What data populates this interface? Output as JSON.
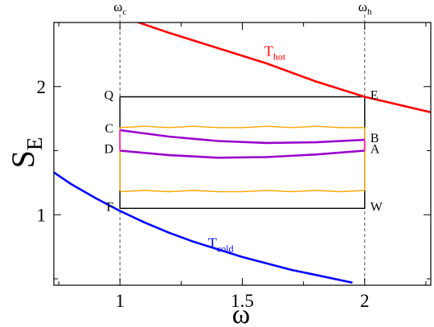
{
  "chart_data": {
    "type": "line",
    "xlabel": "ω",
    "ylabel": {
      "main": "S",
      "sub": "E"
    },
    "xlim": [
      0.73,
      2.27
    ],
    "ylim": [
      0.45,
      2.5
    ],
    "x_ticks": [
      {
        "value": 1,
        "label": "1"
      },
      {
        "value": 1.5,
        "label": "1.5"
      },
      {
        "value": 2,
        "label": "2"
      }
    ],
    "y_ticks": [
      {
        "value": 1,
        "label": "1"
      },
      {
        "value": 2,
        "label": "2"
      }
    ],
    "grid": false,
    "omega_markers": [
      {
        "x": 1,
        "main": "ω",
        "sub": "c"
      },
      {
        "x": 2,
        "main": "ω",
        "sub": "h"
      }
    ],
    "series": [
      {
        "name": "T_hot",
        "color": "#ff0000",
        "x": [
          1.0,
          1.2,
          1.4,
          1.6,
          1.8,
          2.0,
          2.27
        ],
        "y": [
          2.55,
          2.42,
          2.3,
          2.18,
          2.04,
          1.92,
          1.8
        ]
      },
      {
        "name": "T_cold",
        "color": "#0000ff",
        "x": [
          0.73,
          0.8,
          0.9,
          1.0,
          1.1,
          1.2,
          1.3,
          1.4,
          1.5,
          1.6,
          1.7,
          1.8,
          1.9,
          1.95
        ],
        "y": [
          1.33,
          1.24,
          1.13,
          1.03,
          0.94,
          0.86,
          0.79,
          0.73,
          0.67,
          0.62,
          0.57,
          0.53,
          0.49,
          0.47
        ]
      }
    ],
    "cycle_lines": [
      {
        "role": "outer-rectangle",
        "color": "#000000",
        "x": [
          1,
          2,
          2,
          1,
          1
        ],
        "y": [
          1.92,
          1.92,
          1.05,
          1.05,
          1.92
        ]
      },
      {
        "role": "orange-upper",
        "color": "#ffa500",
        "x": [
          1.0,
          1.1,
          1.2,
          1.3,
          1.4,
          1.5,
          1.6,
          1.7,
          1.8,
          1.9,
          2.0
        ],
        "y": [
          1.68,
          1.69,
          1.68,
          1.69,
          1.68,
          1.68,
          1.69,
          1.68,
          1.69,
          1.68,
          1.68
        ]
      },
      {
        "role": "orange-lower",
        "color": "#ffa500",
        "x": [
          1.0,
          1.1,
          1.2,
          1.3,
          1.4,
          1.5,
          1.6,
          1.7,
          1.8,
          1.9,
          2.0
        ],
        "y": [
          1.18,
          1.19,
          1.18,
          1.19,
          1.18,
          1.18,
          1.19,
          1.18,
          1.19,
          1.18,
          1.19
        ]
      },
      {
        "role": "orange-left",
        "color": "#ffa500",
        "x": [
          1,
          1
        ],
        "y": [
          1.19,
          1.68
        ]
      },
      {
        "role": "orange-right",
        "color": "#ffa500",
        "x": [
          2,
          2
        ],
        "y": [
          1.19,
          1.68
        ]
      },
      {
        "role": "purple-upper",
        "color": "#9900cc",
        "x": [
          1.0,
          1.2,
          1.4,
          1.6,
          1.8,
          2.0
        ],
        "y": [
          1.66,
          1.61,
          1.575,
          1.56,
          1.565,
          1.585
        ]
      },
      {
        "role": "purple-lower",
        "color": "#9900cc",
        "x": [
          1.0,
          1.2,
          1.4,
          1.6,
          1.8,
          2.0
        ],
        "y": [
          1.5,
          1.465,
          1.445,
          1.45,
          1.47,
          1.5
        ]
      },
      {
        "role": "pink-left",
        "color": "#ff3399",
        "x": [
          1,
          1
        ],
        "y": [
          1.5,
          1.66
        ]
      },
      {
        "role": "pink-right",
        "color": "#ff3399",
        "x": [
          2,
          2
        ],
        "y": [
          1.5,
          1.585
        ]
      }
    ],
    "point_labels": [
      {
        "text": "Q",
        "x": 1,
        "y": 1.92,
        "side": "left"
      },
      {
        "text": "E",
        "x": 2,
        "y": 1.92,
        "side": "right"
      },
      {
        "text": "C",
        "x": 1,
        "y": 1.66,
        "side": "left"
      },
      {
        "text": "B",
        "x": 2,
        "y": 1.585,
        "side": "right"
      },
      {
        "text": "D",
        "x": 1,
        "y": 1.5,
        "side": "left"
      },
      {
        "text": "A",
        "x": 2,
        "y": 1.5,
        "side": "right"
      },
      {
        "text": "F",
        "x": 1,
        "y": 1.05,
        "side": "left"
      },
      {
        "text": "W",
        "x": 2,
        "y": 1.05,
        "side": "right"
      }
    ],
    "curve_labels": [
      {
        "main": "T",
        "sub": "hot",
        "color": "#ff0000",
        "x": 1.59,
        "y": 2.24
      },
      {
        "main": "T",
        "sub": "cold",
        "color": "#0000ff",
        "x": 1.36,
        "y": 0.74
      }
    ]
  }
}
